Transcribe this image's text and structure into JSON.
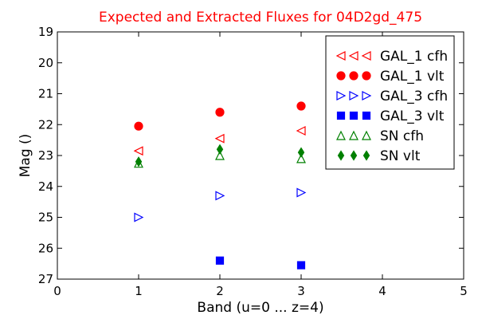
{
  "chart_data": {
    "type": "scatter",
    "title": "Expected and Extracted Fluxes for 04D2gd_475",
    "xlabel": "Band (u=0 ... z=4)",
    "ylabel": "Mag ()",
    "xlim": [
      0,
      5
    ],
    "ylim": [
      27,
      19
    ],
    "y_inverted": true,
    "grid": false,
    "legend_position": "top-right",
    "x_ticks": [
      "0",
      "1",
      "2",
      "3",
      "4",
      "5"
    ],
    "y_ticks": [
      "19",
      "20",
      "21",
      "22",
      "23",
      "24",
      "25",
      "26",
      "27"
    ],
    "series": [
      {
        "name": "GAL_1 cfh",
        "marker": "triangle-left",
        "filled": false,
        "color": "#ff0000",
        "x": [
          1,
          2,
          3
        ],
        "y": [
          22.85,
          22.45,
          22.2
        ]
      },
      {
        "name": "GAL_1 vlt",
        "marker": "circle",
        "filled": true,
        "color": "#ff0000",
        "x": [
          1,
          2,
          3
        ],
        "y": [
          22.05,
          21.6,
          21.4
        ]
      },
      {
        "name": "GAL_3 cfh",
        "marker": "triangle-right",
        "filled": false,
        "color": "#0000ff",
        "x": [
          1,
          2,
          3
        ],
        "y": [
          25.0,
          24.3,
          24.2
        ]
      },
      {
        "name": "GAL_3 vlt",
        "marker": "square",
        "filled": true,
        "color": "#0000ff",
        "x": [
          2,
          3
        ],
        "y": [
          26.4,
          26.55
        ]
      },
      {
        "name": "SN cfh",
        "marker": "triangle-up",
        "filled": false,
        "color": "#008000",
        "x": [
          1,
          2,
          3
        ],
        "y": [
          23.25,
          23.0,
          23.1
        ]
      },
      {
        "name": "SN vlt",
        "marker": "diamond",
        "filled": true,
        "color": "#008000",
        "x": [
          1,
          2,
          3
        ],
        "y": [
          23.2,
          22.8,
          22.9
        ]
      }
    ]
  },
  "colors": {
    "title": "#ff0000",
    "axis": "#000000",
    "background": "#ffffff"
  }
}
